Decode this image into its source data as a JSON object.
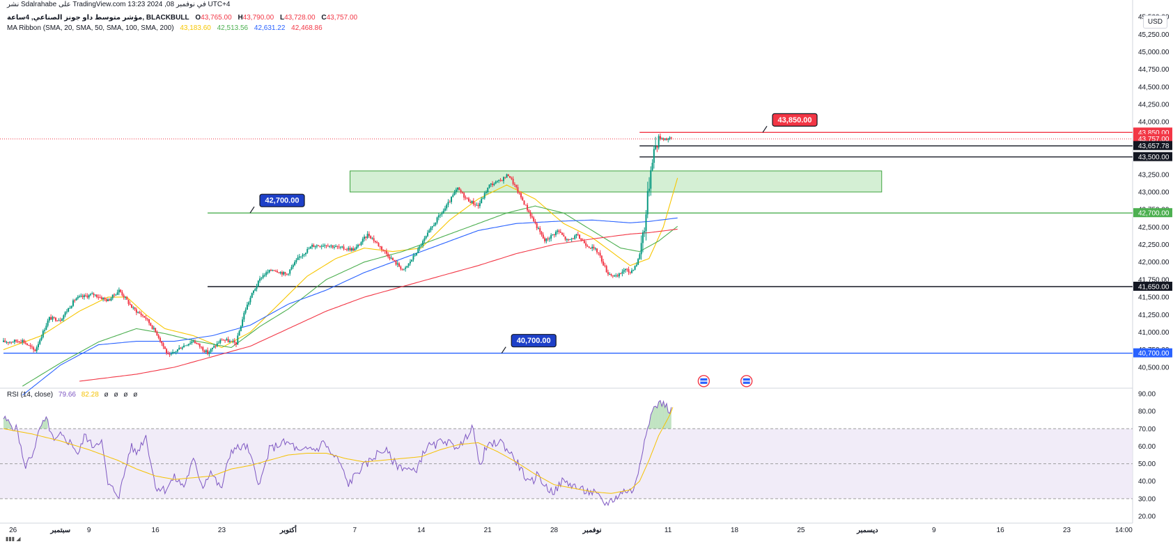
{
  "header": {
    "publisher_line": "نشر Sdalrahabe على TradingView.com في نوفمبر 08, 2024 13:23 UTC+4",
    "symbol": "مؤشر متوسط داو جونز الصناعي, 4ساعة, BLACKBULL",
    "ohlc": {
      "open_label": "O",
      "open": "43,765.00",
      "high_label": "H",
      "high": "43,790.00",
      "low_label": "L",
      "low": "43,728.00",
      "close_label": "C",
      "close": "43,757.00"
    },
    "ma_ribbon_label": "MA Ribbon (SMA, 20, SMA, 50, SMA, 100, SMA, 200)",
    "ma_values": [
      "43,183.60",
      "42,513.56",
      "42,631.22",
      "42,468.86"
    ]
  },
  "currency": "USD",
  "rsi_header": {
    "label": "RSI (14, close)",
    "value1": "79.66",
    "value2": "82.28",
    "extras": [
      "ø",
      "ø",
      "ø",
      "ø"
    ]
  },
  "colors": {
    "up": "#089981",
    "down": "#f23645",
    "ma20": "#f7c600",
    "ma50": "#4caf50",
    "ma100": "#2962ff",
    "ma200": "#f23645",
    "rsi": "#7e57c2",
    "rsi_ma": "#f5c100",
    "zone_fill": "#cdeccd",
    "zone_border": "#3da33d"
  },
  "chart_data": {
    "type": "candlestick",
    "price_axis": {
      "range": [
        40300,
        45650
      ],
      "ticks": [
        "45,500.00",
        "45,250.00",
        "45,000.00",
        "44,750.00",
        "44,500.00",
        "44,250.00",
        "44,000.00",
        "43,750.00",
        "43,500.00",
        "43,250.00",
        "43,000.00",
        "42,750.00",
        "42,500.00",
        "42,250.00",
        "42,000.00",
        "41,750.00",
        "41,500.00",
        "41,250.00",
        "41,000.00",
        "40,750.00",
        "40,500.00"
      ]
    },
    "time_axis": {
      "labels": [
        {
          "t": 1,
          "text": "26"
        },
        {
          "t": 6,
          "text": "سبتمبر"
        },
        {
          "t": 9,
          "text": "9"
        },
        {
          "t": 16,
          "text": "16"
        },
        {
          "t": 23,
          "text": "23"
        },
        {
          "t": 30,
          "text": "أكتوبر"
        },
        {
          "t": 37,
          "text": "7"
        },
        {
          "t": 44,
          "text": "14"
        },
        {
          "t": 51,
          "text": "21"
        },
        {
          "t": 58,
          "text": "28"
        },
        {
          "t": 62,
          "text": "نوفمبر"
        },
        {
          "t": 70,
          "text": "11"
        },
        {
          "t": 77,
          "text": "18"
        },
        {
          "t": 84,
          "text": "25"
        },
        {
          "t": 91,
          "text": "ديسمبر"
        },
        {
          "t": 98,
          "text": "9"
        },
        {
          "t": 105,
          "text": "16"
        },
        {
          "t": 112,
          "text": "23"
        },
        {
          "t": 118,
          "text": "14:00"
        }
      ]
    },
    "price_anchors": [
      [
        0,
        40860
      ],
      [
        2,
        40880
      ],
      [
        3.3,
        40730
      ],
      [
        4.8,
        41200
      ],
      [
        6,
        41180
      ],
      [
        7.6,
        41480
      ],
      [
        9.5,
        41540
      ],
      [
        11,
        41450
      ],
      [
        12.2,
        41600
      ],
      [
        13.6,
        41340
      ],
      [
        15,
        41200
      ],
      [
        16.2,
        40970
      ],
      [
        17.4,
        40650
      ],
      [
        18.6,
        40780
      ],
      [
        20,
        40880
      ],
      [
        21.5,
        40700
      ],
      [
        23,
        40900
      ],
      [
        24.5,
        40840
      ],
      [
        25.4,
        41300
      ],
      [
        26.2,
        41550
      ],
      [
        27.2,
        41800
      ],
      [
        28.4,
        41900
      ],
      [
        29.8,
        41820
      ],
      [
        31.2,
        42080
      ],
      [
        32.5,
        42230
      ],
      [
        34,
        42250
      ],
      [
        35.5,
        42200
      ],
      [
        37,
        42180
      ],
      [
        38.4,
        42400
      ],
      [
        39.8,
        42200
      ],
      [
        41.2,
        42000
      ],
      [
        42.2,
        41880
      ],
      [
        43.3,
        42100
      ],
      [
        44.6,
        42380
      ],
      [
        45.6,
        42600
      ],
      [
        46.6,
        42780
      ],
      [
        47.8,
        43050
      ],
      [
        48.8,
        42900
      ],
      [
        50,
        42800
      ],
      [
        51.2,
        43100
      ],
      [
        52.2,
        43150
      ],
      [
        53.2,
        43250
      ],
      [
        54,
        43050
      ],
      [
        55,
        42800
      ],
      [
        56,
        42550
      ],
      [
        57,
        42300
      ],
      [
        58.4,
        42450
      ],
      [
        59.4,
        42300
      ],
      [
        60.4,
        42380
      ],
      [
        61.4,
        42250
      ],
      [
        62.6,
        42150
      ],
      [
        63.6,
        41850
      ],
      [
        64.6,
        41780
      ],
      [
        65.4,
        41900
      ],
      [
        66,
        41850
      ],
      [
        66.8,
        42000
      ],
      [
        67.6,
        42600
      ],
      [
        68.3,
        43500
      ],
      [
        69,
        43780
      ],
      [
        69.8,
        43760
      ],
      [
        70.4,
        43757
      ]
    ],
    "moving_averages": [
      {
        "period": 20,
        "anchors": [
          [
            0,
            40750
          ],
          [
            4,
            40950
          ],
          [
            8,
            41300
          ],
          [
            11,
            41500
          ],
          [
            13,
            41500
          ],
          [
            15,
            41250
          ],
          [
            17,
            41050
          ],
          [
            20,
            40950
          ],
          [
            23,
            40780
          ],
          [
            26,
            41000
          ],
          [
            29,
            41400
          ],
          [
            32,
            41800
          ],
          [
            35,
            42050
          ],
          [
            38,
            42200
          ],
          [
            41,
            42150
          ],
          [
            44,
            42200
          ],
          [
            47,
            42600
          ],
          [
            50,
            42900
          ],
          [
            53,
            43100
          ],
          [
            56,
            42900
          ],
          [
            59,
            42550
          ],
          [
            62,
            42350
          ],
          [
            64,
            42150
          ],
          [
            66,
            41950
          ],
          [
            68,
            42050
          ],
          [
            69.5,
            42500
          ],
          [
            71,
            43200
          ]
        ]
      },
      {
        "period": 50,
        "anchors": [
          [
            2,
            40230
          ],
          [
            6,
            40560
          ],
          [
            10,
            40860
          ],
          [
            14,
            41050
          ],
          [
            17,
            40980
          ],
          [
            20,
            40880
          ],
          [
            24,
            40780
          ],
          [
            27,
            41080
          ],
          [
            30,
            41330
          ],
          [
            34,
            41750
          ],
          [
            38,
            42000
          ],
          [
            42,
            42150
          ],
          [
            46,
            42350
          ],
          [
            50,
            42550
          ],
          [
            53,
            42700
          ],
          [
            56,
            42800
          ],
          [
            59,
            42700
          ],
          [
            62,
            42450
          ],
          [
            65,
            42200
          ],
          [
            67,
            42150
          ],
          [
            69,
            42300
          ],
          [
            71,
            42510
          ]
        ]
      },
      {
        "period": 100,
        "anchors": [
          [
            2,
            40100
          ],
          [
            6,
            40530
          ],
          [
            10,
            40820
          ],
          [
            14,
            40870
          ],
          [
            18,
            40870
          ],
          [
            22,
            40950
          ],
          [
            26,
            41100
          ],
          [
            30,
            41400
          ],
          [
            34,
            41600
          ],
          [
            38,
            41850
          ],
          [
            42,
            42050
          ],
          [
            46,
            42250
          ],
          [
            50,
            42450
          ],
          [
            54,
            42550
          ],
          [
            58,
            42580
          ],
          [
            62,
            42600
          ],
          [
            66,
            42560
          ],
          [
            68,
            42580
          ],
          [
            71,
            42630
          ]
        ]
      },
      {
        "period": 200,
        "anchors": [
          [
            8,
            40300
          ],
          [
            14,
            40400
          ],
          [
            18,
            40500
          ],
          [
            22,
            40650
          ],
          [
            26,
            40800
          ],
          [
            30,
            41050
          ],
          [
            34,
            41300
          ],
          [
            38,
            41500
          ],
          [
            42,
            41650
          ],
          [
            46,
            41800
          ],
          [
            50,
            41950
          ],
          [
            54,
            42120
          ],
          [
            58,
            42250
          ],
          [
            62,
            42330
          ],
          [
            66,
            42400
          ],
          [
            68,
            42420
          ],
          [
            71,
            42470
          ]
        ]
      }
    ],
    "horizontal_levels": [
      {
        "price": 43850,
        "label": "43,850.00",
        "color": "#f23645",
        "x_start": 67,
        "callout": "43,850.00",
        "callout_t": 81
      },
      {
        "price": 43757,
        "label": "43,757.00",
        "color": "#f23645",
        "style": "dotted-current"
      },
      {
        "price": 43657.78,
        "label": "43,657.78",
        "color": "#131722",
        "x_start": 67
      },
      {
        "price": 43500,
        "label": "43,500.00",
        "color": "#131722",
        "x_start": 67
      },
      {
        "price": 42700,
        "label": "42,700.00",
        "color": "#4caf50",
        "x_start": 21.5,
        "callout": "42,700.00",
        "callout_t": 27
      },
      {
        "price": 41650,
        "label": "41,650.00",
        "color": "#131722",
        "x_start": 21.5
      },
      {
        "price": 40700,
        "label": "40,700.00",
        "color": "#2962ff",
        "x_start": 0,
        "callout": "40,700.00",
        "callout_t": 53.5
      }
    ],
    "zones": [
      {
        "t_start": 36.5,
        "t_end": 92.5,
        "price_low": 43000,
        "price_high": 43300
      }
    ],
    "rsi": {
      "range": [
        20,
        90
      ],
      "ticks": [
        "90.00",
        "80.00",
        "70.00",
        "60.00",
        "50.00",
        "40.00",
        "30.00",
        "20.00"
      ],
      "overbought": 70,
      "oversold": 30,
      "anchors": [
        [
          0,
          76
        ],
        [
          1.5,
          69
        ],
        [
          2.2,
          48
        ],
        [
          3,
          55
        ],
        [
          4,
          72
        ],
        [
          4.6,
          75
        ],
        [
          5.3,
          62
        ],
        [
          6,
          66
        ],
        [
          7.3,
          61
        ],
        [
          7.9,
          55
        ],
        [
          8.6,
          67
        ],
        [
          9.3,
          60
        ],
        [
          10.3,
          64
        ],
        [
          11,
          38
        ],
        [
          12.2,
          32
        ],
        [
          13.4,
          60
        ],
        [
          14,
          56
        ],
        [
          15,
          66
        ],
        [
          16,
          37
        ],
        [
          17,
          35
        ],
        [
          18,
          42
        ],
        [
          19,
          37
        ],
        [
          20,
          52
        ],
        [
          21,
          37
        ],
        [
          21.8,
          46
        ],
        [
          22.9,
          35
        ],
        [
          24,
          58
        ],
        [
          25.6,
          60
        ],
        [
          27,
          38
        ],
        [
          28,
          58
        ],
        [
          29.4,
          62
        ],
        [
          30.4,
          61
        ],
        [
          31.2,
          56
        ],
        [
          32.3,
          59
        ],
        [
          33,
          58
        ],
        [
          33.8,
          63
        ],
        [
          34.4,
          56
        ],
        [
          35.3,
          52
        ],
        [
          36.3,
          38
        ],
        [
          37.4,
          46
        ],
        [
          38.3,
          50
        ],
        [
          39.4,
          56
        ],
        [
          40.2,
          58
        ],
        [
          41.4,
          49
        ],
        [
          42.2,
          48
        ],
        [
          43.3,
          45
        ],
        [
          44.6,
          60
        ],
        [
          45.4,
          60
        ],
        [
          46.4,
          64
        ],
        [
          47.3,
          60
        ],
        [
          48.4,
          61
        ],
        [
          49.4,
          73
        ],
        [
          50.1,
          48
        ],
        [
          50.8,
          59
        ],
        [
          52.3,
          63
        ],
        [
          53.4,
          56
        ],
        [
          54.3,
          49
        ],
        [
          55.4,
          38
        ],
        [
          56.3,
          44
        ],
        [
          57.2,
          36
        ],
        [
          58.1,
          34
        ],
        [
          58.8,
          40
        ],
        [
          59.9,
          38
        ],
        [
          60.8,
          35
        ],
        [
          61.6,
          34
        ],
        [
          62.3,
          33
        ],
        [
          63.3,
          27
        ],
        [
          64.1,
          29
        ],
        [
          65.5,
          35
        ],
        [
          66.1,
          34
        ],
        [
          66.6,
          38
        ],
        [
          67.2,
          55
        ],
        [
          67.8,
          72
        ],
        [
          68.6,
          83
        ],
        [
          69.4,
          85
        ],
        [
          70.1,
          81
        ],
        [
          70.5,
          79.66
        ]
      ],
      "ma_anchors": [
        [
          0,
          70
        ],
        [
          3,
          67
        ],
        [
          6,
          63
        ],
        [
          9,
          58
        ],
        [
          12,
          52
        ],
        [
          14,
          47
        ],
        [
          16,
          43
        ],
        [
          18,
          41
        ],
        [
          20,
          42
        ],
        [
          22,
          43
        ],
        [
          24,
          47
        ],
        [
          26,
          49
        ],
        [
          28,
          52
        ],
        [
          30,
          55
        ],
        [
          32,
          56
        ],
        [
          34,
          56
        ],
        [
          36,
          53
        ],
        [
          38,
          51
        ],
        [
          40,
          52
        ],
        [
          42,
          53
        ],
        [
          44,
          54
        ],
        [
          46,
          58
        ],
        [
          48,
          61
        ],
        [
          50,
          62
        ],
        [
          52,
          57
        ],
        [
          54,
          51
        ],
        [
          56,
          44
        ],
        [
          58,
          38
        ],
        [
          60,
          36
        ],
        [
          62,
          34
        ],
        [
          64,
          33
        ],
        [
          66,
          35
        ],
        [
          67,
          40
        ],
        [
          68,
          52
        ],
        [
          69,
          66
        ],
        [
          70.2,
          78
        ],
        [
          70.5,
          82.28
        ]
      ]
    }
  }
}
